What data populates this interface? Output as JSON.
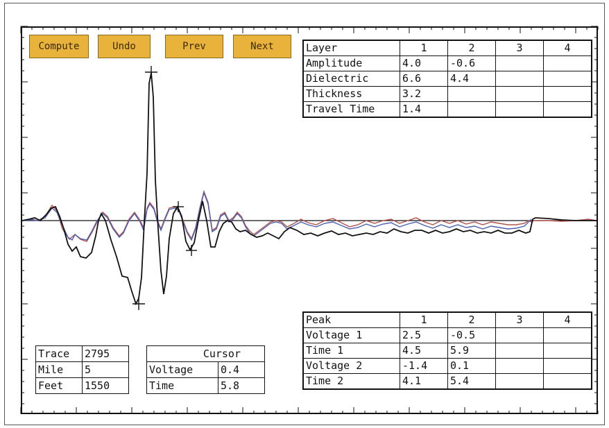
{
  "buttons": {
    "compute": "Compute",
    "undo": "Undo",
    "prev": "Prev",
    "next": "Next"
  },
  "layer_table": {
    "header": [
      "Layer",
      "1",
      "2",
      "3",
      "4"
    ],
    "rows": [
      {
        "label": "Amplitude",
        "values": [
          "4.0",
          "-0.6",
          "",
          ""
        ]
      },
      {
        "label": "Dielectric",
        "values": [
          "6.6",
          "4.4",
          "",
          ""
        ]
      },
      {
        "label": "Thickness",
        "values": [
          "3.2",
          "",
          "",
          ""
        ]
      },
      {
        "label": "Travel Time",
        "values": [
          "1.4",
          "",
          "",
          ""
        ]
      }
    ]
  },
  "peak_table": {
    "header": [
      "Peak",
      "1",
      "2",
      "3",
      "4"
    ],
    "rows": [
      {
        "label": "Voltage 1",
        "values": [
          "2.5",
          "-0.5",
          "",
          ""
        ]
      },
      {
        "label": "Time 1",
        "values": [
          "4.5",
          "5.9",
          "",
          ""
        ]
      },
      {
        "label": "Voltage 2",
        "values": [
          "-1.4",
          "0.1",
          "",
          ""
        ]
      },
      {
        "label": "Time 2",
        "values": [
          "4.1",
          "5.4",
          "",
          ""
        ]
      }
    ]
  },
  "info_table": {
    "rows": [
      {
        "label": "Trace",
        "value": "2795"
      },
      {
        "label": "Mile",
        "value": "5"
      },
      {
        "label": "Feet",
        "value": "1550"
      }
    ]
  },
  "cursor_table": {
    "title": "Cursor",
    "rows": [
      {
        "label": "Voltage",
        "value": "0.4"
      },
      {
        "label": "Time",
        "value": "5.8"
      }
    ]
  },
  "colors": {
    "button_fill": "#e9b23a",
    "trace_primary": "#111111",
    "trace_red": "#b3504a",
    "trace_blue": "#4a5fb3"
  }
}
